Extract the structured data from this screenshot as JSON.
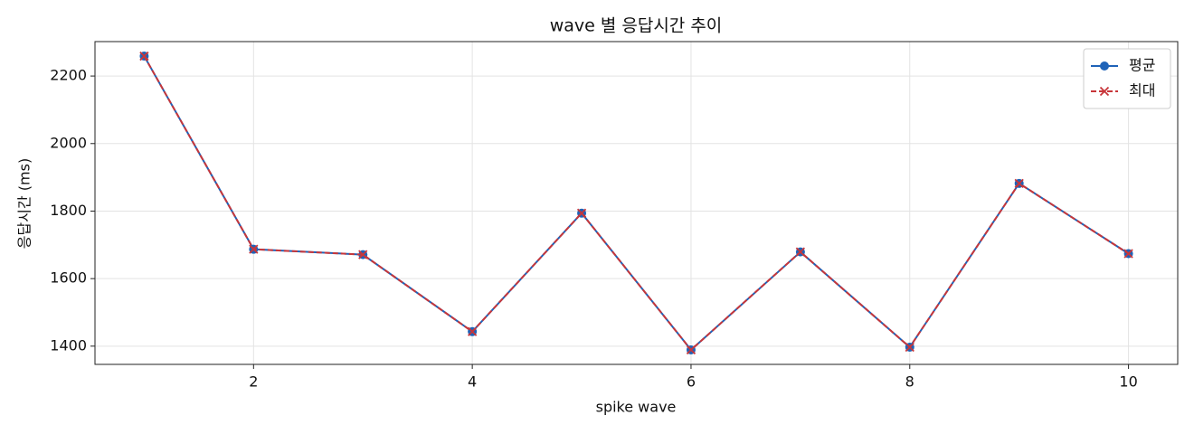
{
  "chart_data": {
    "type": "line",
    "title": "wave 별 응답시간 추이",
    "x_label": "spike wave",
    "y_label": "응답시간 (ms)",
    "x": [
      1,
      2,
      3,
      4,
      5,
      6,
      7,
      8,
      9,
      10
    ],
    "series": [
      {
        "name": "평균",
        "color": "#1f63b8",
        "marker": "o",
        "linestyle": "solid",
        "values": [
          2259,
          1687,
          1671,
          1443,
          1794,
          1389,
          1679,
          1397,
          1882,
          1674
        ]
      },
      {
        "name": "최대",
        "color": "#c8363a",
        "marker": "x",
        "linestyle": "dashed",
        "values": [
          2259,
          1687,
          1671,
          1443,
          1794,
          1389,
          1679,
          1397,
          1882,
          1674
        ]
      }
    ],
    "xlim": [
      0.55,
      10.45
    ],
    "xticks": [
      2,
      4,
      6,
      8,
      10
    ],
    "ylim": [
      1346,
      2302
    ],
    "yticks": [
      1400,
      1600,
      1800,
      2000,
      2200
    ],
    "grid": true,
    "legend": "upper right"
  }
}
